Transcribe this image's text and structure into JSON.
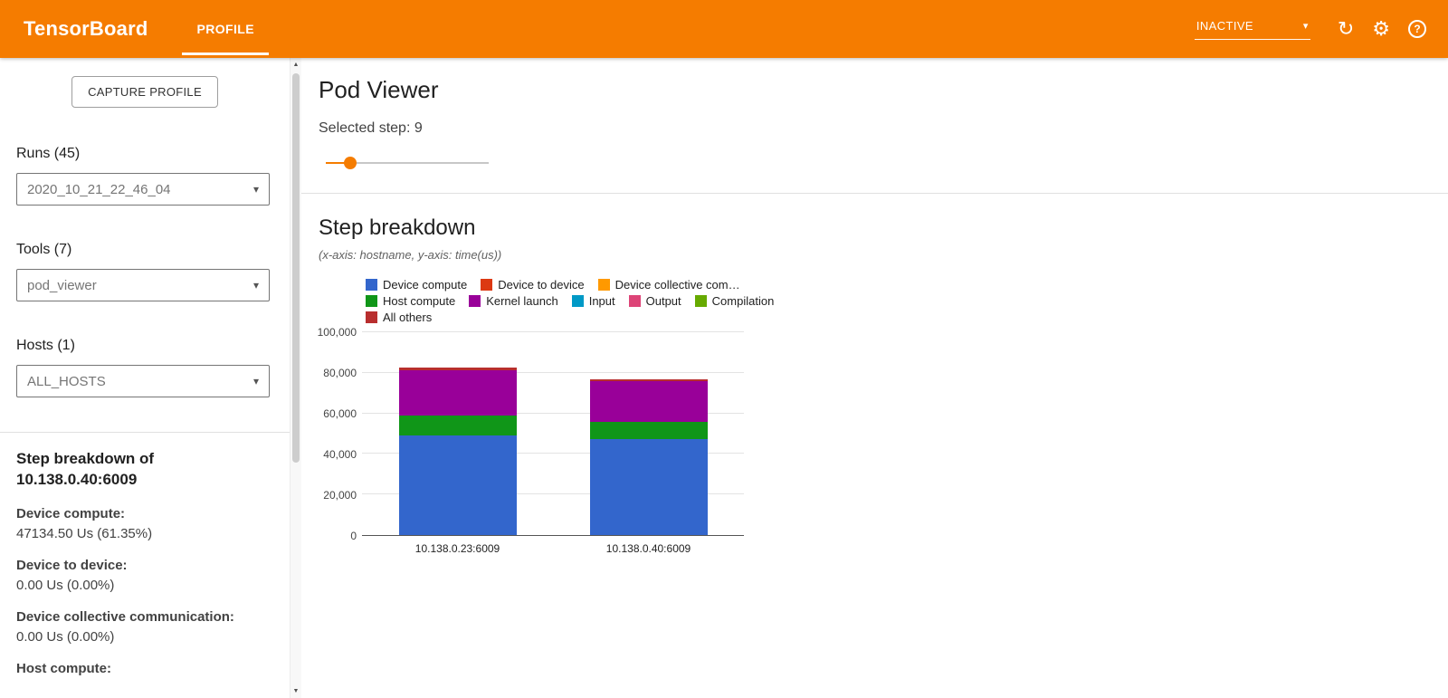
{
  "colors": {
    "accent": "#f57c00"
  },
  "icons": {
    "caret_down": "▾",
    "refresh": "↻",
    "settings": "⚙",
    "help": "?",
    "arrow_up": "▲",
    "arrow_down": "▼"
  },
  "header": {
    "app_title": "TensorBoard",
    "tab_profile": "PROFILE",
    "status": "INACTIVE"
  },
  "sidebar": {
    "capture_button": "CAPTURE PROFILE",
    "runs_label": "Runs (45)",
    "runs_selected": "2020_10_21_22_46_04",
    "tools_label": "Tools (7)",
    "tools_selected": "pod_viewer",
    "hosts_label": "Hosts (1)",
    "hosts_selected": "ALL_HOSTS",
    "breakdown_title_line1": "Step breakdown of",
    "breakdown_title_line2": "10.138.0.40:6009",
    "stats": [
      {
        "label": "Device compute:",
        "value": "47134.50 Us (61.35%)"
      },
      {
        "label": "Device to device:",
        "value": "0.00 Us (0.00%)"
      },
      {
        "label": "Device collective communication:",
        "value": "0.00 Us (0.00%)"
      },
      {
        "label": "Host compute:"
      }
    ]
  },
  "main": {
    "title": "Pod Viewer",
    "selected_step_text": "Selected step: 9",
    "slider": {
      "value": 9,
      "percent": 15
    },
    "section_title": "Step breakdown",
    "section_subtitle": "(x-axis: hostname, y-axis: time(us))"
  },
  "chart_data": {
    "type": "bar",
    "stacked": true,
    "xlabel": "hostname",
    "ylabel": "time(us)",
    "categories": [
      "10.138.0.23:6009",
      "10.138.0.40:6009"
    ],
    "series": [
      {
        "name": "Device compute",
        "color": "#3366cc",
        "values": [
          49000,
          47134.5
        ]
      },
      {
        "name": "Device to device",
        "color": "#dc3912",
        "values": [
          0,
          0
        ]
      },
      {
        "name": "Device collective com…",
        "color": "#ff9900",
        "values": [
          0,
          0
        ]
      },
      {
        "name": "Host compute",
        "color": "#109618",
        "values": [
          9800,
          8700
        ]
      },
      {
        "name": "Kernel launch",
        "color": "#990099",
        "values": [
          22500,
          19900
        ]
      },
      {
        "name": "Input",
        "color": "#0099c6",
        "values": [
          0,
          0
        ]
      },
      {
        "name": "Output",
        "color": "#dd4477",
        "values": [
          0,
          0
        ]
      },
      {
        "name": "Compilation",
        "color": "#66aa00",
        "values": [
          0,
          0
        ]
      },
      {
        "name": "All others",
        "color": "#b82e2e",
        "values": [
          1500,
          1100
        ]
      }
    ],
    "ylim": [
      0,
      100000
    ],
    "ytick_values": [
      100000,
      80000,
      60000,
      40000,
      20000,
      0
    ],
    "yticks": [
      "100,000",
      "80,000",
      "60,000",
      "40,000",
      "20,000",
      "0"
    ],
    "grid": true,
    "legend_position": "top"
  }
}
